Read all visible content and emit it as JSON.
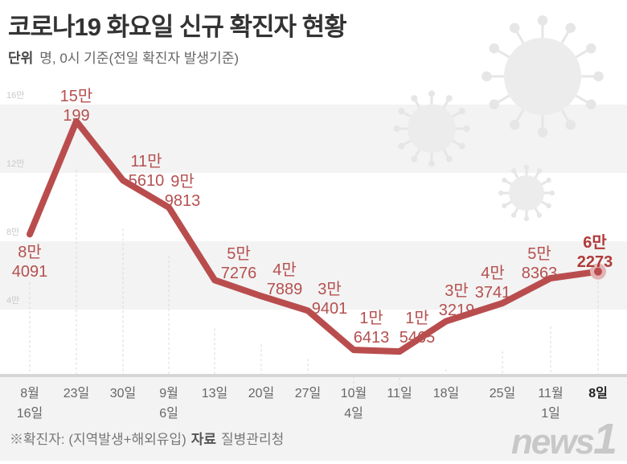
{
  "title": "코로나19 화요일 신규 확진자 현황",
  "unit_label": "단위",
  "unit_text": "명, 0시 기준(전일 확진자 발생기준)",
  "note": "※확진자: (지역발생+해외유입)",
  "source_label": "자료",
  "source": "질병관리청",
  "logo": "news1",
  "colors": {
    "line": "#b94d4e",
    "label": "#b5504f",
    "band": "#f3f3f3"
  },
  "chart_data": {
    "type": "line",
    "title": "코로나19 화요일 신규 확진자 현황",
    "categories": [
      [
        "8월",
        "16일"
      ],
      [
        "23일"
      ],
      [
        "30일"
      ],
      [
        "9월",
        "6일"
      ],
      [
        "13일"
      ],
      [
        "20일"
      ],
      [
        "27일"
      ],
      [
        "10월",
        "4일"
      ],
      [
        "11일"
      ],
      [
        "18일"
      ],
      [
        "25일"
      ],
      [
        "11월",
        "1일"
      ],
      [
        "8일"
      ]
    ],
    "values": [
      84091,
      150199,
      115610,
      99813,
      57276,
      47889,
      39401,
      16413,
      15465,
      33219,
      43741,
      58363,
      62273
    ],
    "value_labels": [
      [
        "8만",
        "4091"
      ],
      [
        "15만",
        "199"
      ],
      [
        "11만",
        "5610"
      ],
      [
        "9만",
        "9813"
      ],
      [
        "5만",
        "7276"
      ],
      [
        "4만",
        "7889"
      ],
      [
        "3만",
        "9401"
      ],
      [
        "1만",
        "6413"
      ],
      [
        "1만",
        "5465"
      ],
      [
        "3만",
        "3219"
      ],
      [
        "4만",
        "3741"
      ],
      [
        "5만",
        "8363"
      ],
      [
        "6만",
        "2273"
      ]
    ],
    "yticks": [
      {
        "v": 160000,
        "label": "16만"
      },
      {
        "v": 120000,
        "label": "12만"
      },
      {
        "v": 80000,
        "label": "8만"
      },
      {
        "v": 40000,
        "label": "4만"
      }
    ],
    "ylim": [
      0,
      160000
    ],
    "ylabel": "명",
    "xlabel": "",
    "grid": "alternating bands"
  }
}
